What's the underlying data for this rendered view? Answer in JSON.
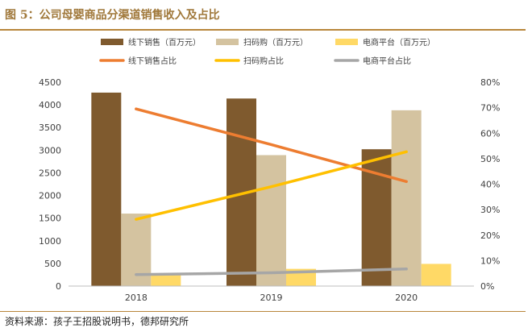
{
  "header": {
    "title": "图 5：公司母婴商品分渠道销售收入及占比"
  },
  "footer": {
    "source": "资料来源：孩子王招股说明书，德邦研究所"
  },
  "chart_data": {
    "type": "bar",
    "categories": [
      "2018",
      "2019",
      "2020"
    ],
    "series": [
      {
        "name": "线下销售（百万元）",
        "kind": "bar",
        "axis": "left",
        "color": "#7F5A2E",
        "values": [
          4270,
          4140,
          3020
        ]
      },
      {
        "name": "扫码购（百万元）",
        "kind": "bar",
        "axis": "left",
        "color": "#D4C3A0",
        "values": [
          1600,
          2890,
          3880
        ]
      },
      {
        "name": "电商平台（百万元）",
        "kind": "bar",
        "axis": "left",
        "color": "#FFD966",
        "values": [
          240,
          380,
          490
        ]
      },
      {
        "name": "线下销售占比",
        "kind": "line",
        "axis": "right",
        "color": "#ED7D31",
        "values": [
          0.695,
          0.555,
          0.41
        ]
      },
      {
        "name": "扫码购占比",
        "kind": "line",
        "axis": "right",
        "color": "#FFC000",
        "values": [
          0.262,
          0.39,
          0.527
        ]
      },
      {
        "name": "电商平台占比",
        "kind": "line",
        "axis": "right",
        "color": "#A6A6A6",
        "values": [
          0.045,
          0.052,
          0.067
        ]
      }
    ],
    "y_left": {
      "min": 0,
      "max": 4500,
      "step": 500,
      "ticks": [
        "0",
        "500",
        "1000",
        "1500",
        "2000",
        "2500",
        "3000",
        "3500",
        "4000",
        "4500"
      ]
    },
    "y_right": {
      "min": 0,
      "max": 0.8,
      "step": 0.1,
      "ticks": [
        "0%",
        "10%",
        "20%",
        "30%",
        "40%",
        "50%",
        "60%",
        "70%",
        "80%"
      ]
    },
    "grid": false,
    "legend_position": "top"
  }
}
